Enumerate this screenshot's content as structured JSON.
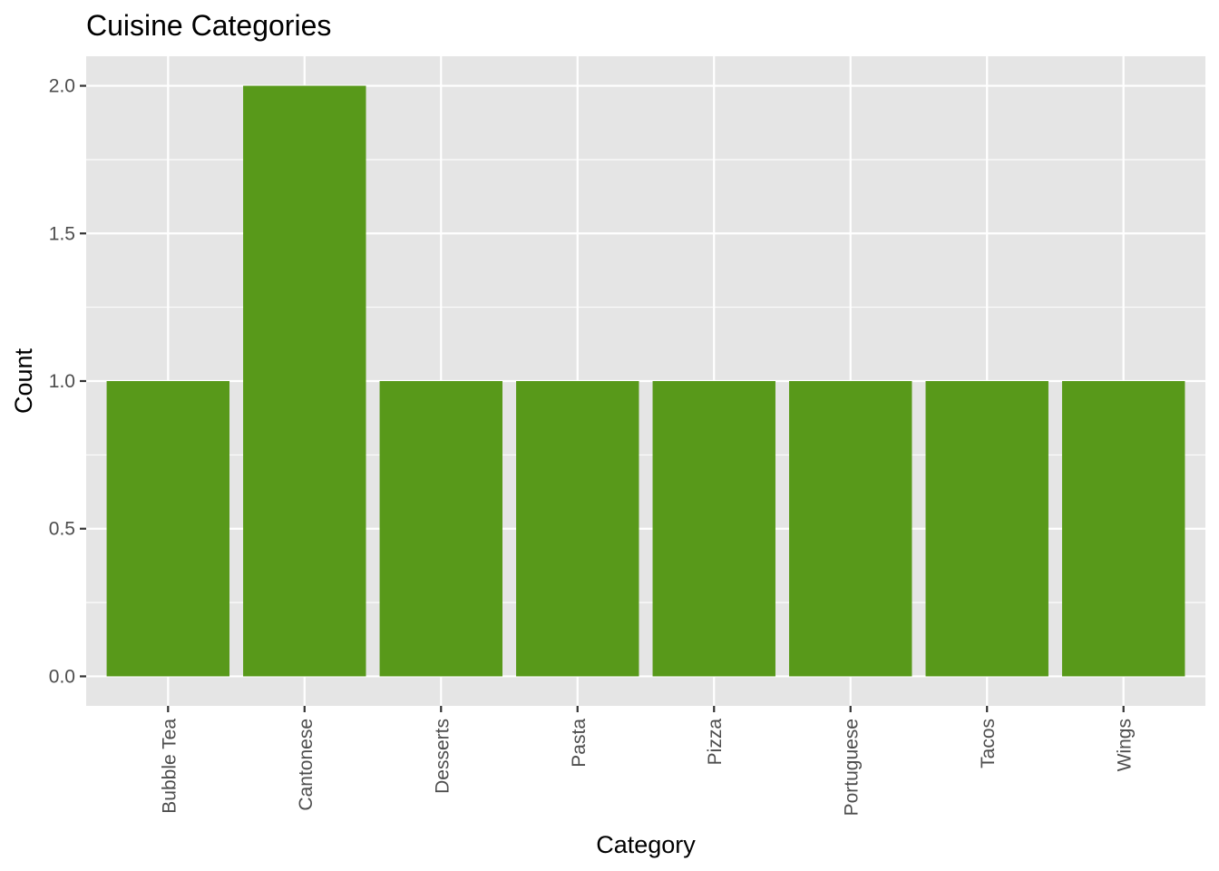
{
  "chart_data": {
    "type": "bar",
    "title": "Cuisine Categories",
    "xlabel": "Category",
    "ylabel": "Count",
    "categories": [
      "Bubble Tea",
      "Cantonese",
      "Desserts",
      "Pasta",
      "Pizza",
      "Portuguese",
      "Tacos",
      "Wings"
    ],
    "values": [
      1,
      2,
      1,
      1,
      1,
      1,
      1,
      1
    ],
    "ylim": [
      -0.1,
      2.1
    ],
    "y_ticks": [
      0.0,
      0.5,
      1.0,
      1.5,
      2.0
    ],
    "y_tick_labels": [
      "0.0",
      "0.5",
      "1.0",
      "1.5",
      "2.0"
    ],
    "grid": true,
    "colors": {
      "bar": "#58991a",
      "panel_background": "#e5e5e5",
      "grid": "#ffffff",
      "tick_text": "#4d4d4d",
      "axis_text": "#000000"
    }
  }
}
